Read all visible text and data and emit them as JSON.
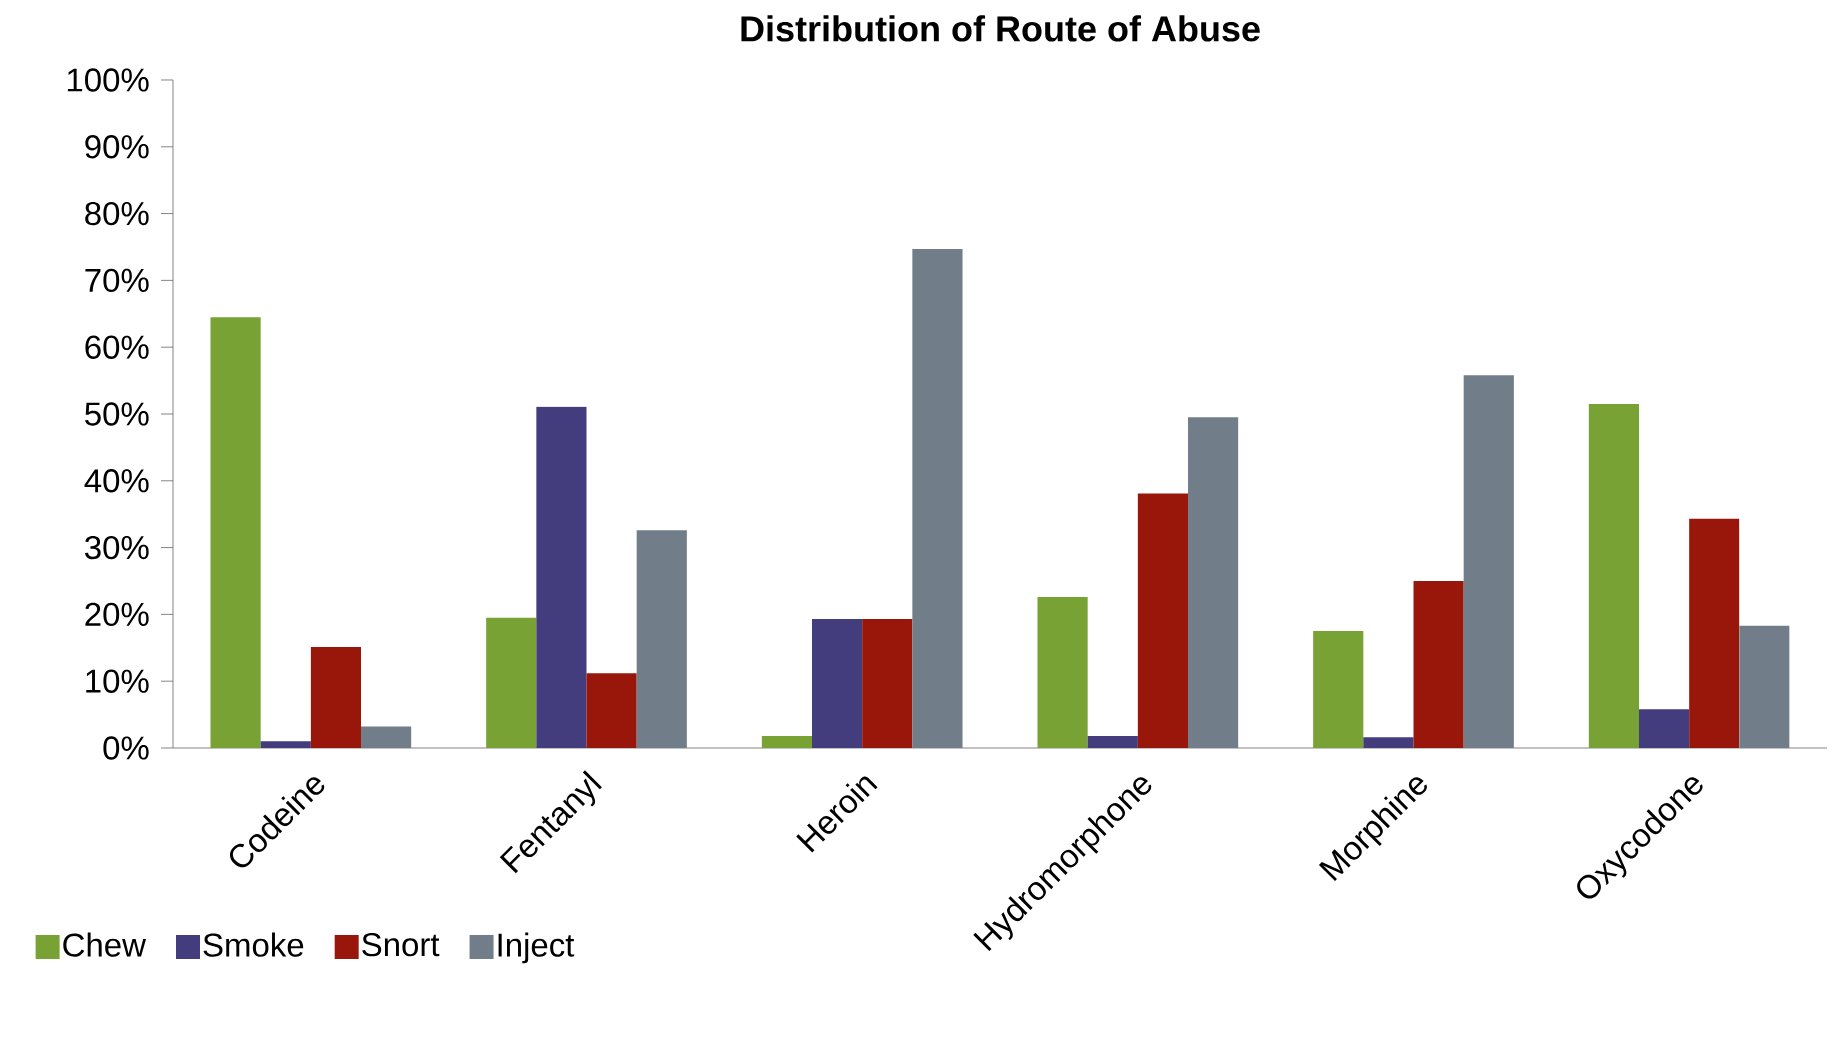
{
  "chart_data": {
    "type": "bar",
    "title": "Distribution of Route of Abuse",
    "categories": [
      "Codeine",
      "Fentanyl",
      "Heroin",
      "Hydromorphone",
      "Morphine",
      "Oxycodone"
    ],
    "series": [
      {
        "name": "Chew",
        "color": "#78a234",
        "values": [
          64.5,
          19.5,
          1.8,
          22.6,
          17.5,
          51.5
        ]
      },
      {
        "name": "Smoke",
        "color": "#433d7e",
        "values": [
          1.0,
          51.1,
          19.3,
          1.8,
          1.6,
          5.8
        ]
      },
      {
        "name": "Snort",
        "color": "#99160a",
        "values": [
          15.1,
          11.2,
          19.3,
          38.1,
          25.0,
          34.3
        ]
      },
      {
        "name": "Inject",
        "color": "#717e8a",
        "values": [
          3.2,
          32.6,
          74.7,
          49.5,
          55.8,
          18.3
        ]
      }
    ],
    "ylim": [
      0,
      100
    ],
    "yticks": [
      {
        "value": 0,
        "label": "0%"
      },
      {
        "value": 10,
        "label": "10%"
      },
      {
        "value": 20,
        "label": "20%"
      },
      {
        "value": 30,
        "label": "30%"
      },
      {
        "value": 40,
        "label": "40%"
      },
      {
        "value": 50,
        "label": "50%"
      },
      {
        "value": 60,
        "label": "60%"
      },
      {
        "value": 70,
        "label": "70%"
      },
      {
        "value": 80,
        "label": "80%"
      },
      {
        "value": 90,
        "label": "90%"
      },
      {
        "value": 100,
        "label": "100%"
      }
    ],
    "legend": "bottom",
    "grid": false
  }
}
